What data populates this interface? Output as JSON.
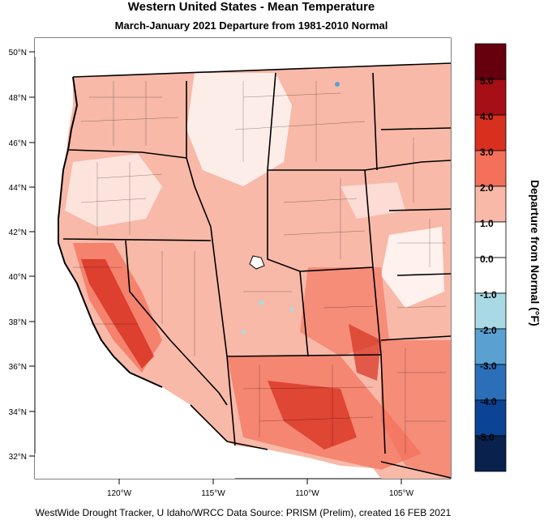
{
  "header": {
    "title": "Western United States - Mean Temperature",
    "subtitle": "March-January 2021  Departure from 1981-2010 Normal"
  },
  "footer": {
    "credit": "WestWide Drought Tracker, U Idaho/WRCC Data Source: PRISM (Prelim), created 16 FEB 2021"
  },
  "map": {
    "lat_labels": [
      "50°N",
      "48°N",
      "46°N",
      "44°N",
      "42°N",
      "40°N",
      "38°N",
      "36°N",
      "34°N",
      "32°N"
    ],
    "lon_labels": [
      "120°W",
      "115°W",
      "110°W",
      "105°W"
    ],
    "colors": {
      "ocean": "#ffffff",
      "land_neutral": "#ffffff",
      "warm_1": "#f8b9a8",
      "warm_2": "#f4705a",
      "warm_3": "#d7301f",
      "cool_1": "#a9d9e4"
    }
  },
  "legend": {
    "title": "Departure from Normal (°F)",
    "labels": [
      "5.0",
      "4.0",
      "3.0",
      "2.0",
      "1.0",
      "0.0",
      "-1.0",
      "-2.0",
      "-3.0",
      "-4.0",
      "-5.0"
    ],
    "colors": [
      "#67000d",
      "#a50f15",
      "#d7301f",
      "#f4705a",
      "#f8b9a8",
      "#ffffff",
      "#ffffff",
      "#a9d9e4",
      "#5aa0d1",
      "#2a6fb8",
      "#0b4494",
      "#08214d"
    ]
  }
}
